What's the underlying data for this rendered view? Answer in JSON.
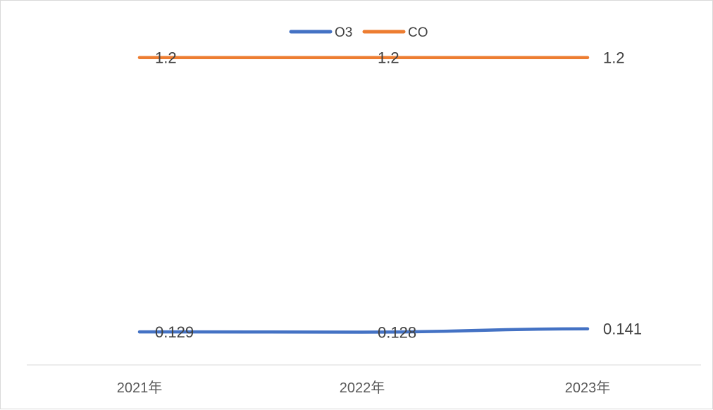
{
  "chart_data": {
    "type": "line",
    "title": "",
    "xlabel": "",
    "ylabel": "",
    "categories": [
      "2021年",
      "2022年",
      "2023年"
    ],
    "series": [
      {
        "name": "O3",
        "values": [
          0.129,
          0.128,
          0.141
        ],
        "labels": [
          "0.129",
          "0.128",
          "0.141"
        ],
        "color": "#4472C4"
      },
      {
        "name": "CO",
        "values": [
          1.2,
          1.2,
          1.2
        ],
        "labels": [
          "1.2",
          "1.2",
          "1.2"
        ],
        "color": "#ED7D31"
      }
    ],
    "ylim": [
      0,
      1.4
    ],
    "grid": false,
    "legend": "top-center",
    "axis_color": "#d9d9d9"
  }
}
